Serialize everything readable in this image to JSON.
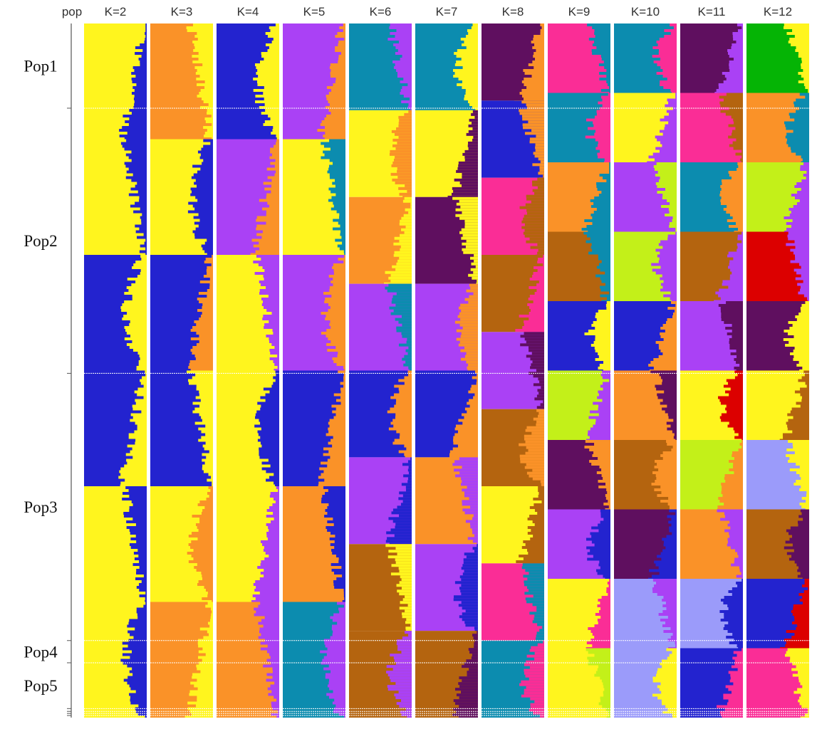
{
  "chart_data": {
    "type": "structure-admixture-barplot",
    "population_header": "pop",
    "k_values": [
      "K=2",
      "K=3",
      "K=4",
      "K=5",
      "K=6",
      "K=7",
      "K=8",
      "K=9",
      "K=10",
      "K=11",
      "K=12"
    ],
    "populations": [
      {
        "name": "Pop1",
        "share": 0.122
      },
      {
        "name": "Pop2",
        "share": 0.382
      },
      {
        "name": "Pop3",
        "share": 0.385
      },
      {
        "name": "Pop4",
        "share": 0.032
      },
      {
        "name": "Pop5",
        "share": 0.066
      },
      {
        "name": "",
        "share": 0.004
      },
      {
        "name": "",
        "share": 0.003
      },
      {
        "name": "",
        "share": 0.003
      },
      {
        "name": "",
        "share": 0.003
      }
    ],
    "cluster_colors": {
      "yellow": "#FFF51E",
      "blue": "#2323CF",
      "orange": "#FA9228",
      "purple": "#AA41F5",
      "teal": "#0C8CAF",
      "dark_purple": "#5F0F5F",
      "pink": "#FA2D96",
      "brown": "#B4640F",
      "lime": "#C3F019",
      "lavender": "#9B9BFA",
      "green": "#05B405",
      "red": "#DC0000"
    },
    "panels": [
      {
        "k": "K=2",
        "blocks": [
          [
            "yellow",
            "blue"
          ],
          [
            "yellow",
            "blue"
          ],
          [
            "blue",
            "yellow"
          ],
          [
            "blue",
            "yellow"
          ],
          [
            "yellow",
            "blue"
          ],
          [
            "yellow",
            "blue"
          ]
        ]
      },
      {
        "k": "K=3",
        "blocks": [
          [
            "orange",
            "yellow"
          ],
          [
            "yellow",
            "blue"
          ],
          [
            "blue",
            "orange"
          ],
          [
            "blue",
            "yellow"
          ],
          [
            "yellow",
            "orange"
          ],
          [
            "orange",
            "yellow"
          ]
        ]
      },
      {
        "k": "K=4",
        "blocks": [
          [
            "blue",
            "yellow"
          ],
          [
            "purple",
            "orange"
          ],
          [
            "yellow",
            "purple"
          ],
          [
            "yellow",
            "blue"
          ],
          [
            "yellow",
            "purple"
          ],
          [
            "orange",
            "purple"
          ]
        ]
      },
      {
        "k": "K=5",
        "blocks": [
          [
            "purple",
            "orange"
          ],
          [
            "yellow",
            "teal"
          ],
          [
            "purple",
            "orange"
          ],
          [
            "blue",
            "orange"
          ],
          [
            "orange",
            "blue"
          ],
          [
            "teal",
            "purple"
          ]
        ]
      },
      {
        "k": "K=6",
        "blocks": [
          [
            "teal",
            "purple"
          ],
          [
            "yellow",
            "orange"
          ],
          [
            "orange",
            "yellow"
          ],
          [
            "purple",
            "teal"
          ],
          [
            "blue",
            "orange"
          ],
          [
            "purple",
            "blue"
          ],
          [
            "brown",
            "yellow"
          ],
          [
            "brown",
            "purple"
          ]
        ]
      },
      {
        "k": "K=7",
        "blocks": [
          [
            "teal",
            "yellow"
          ],
          [
            "yellow",
            "dark_purple"
          ],
          [
            "dark_purple",
            "yellow"
          ],
          [
            "purple",
            "orange"
          ],
          [
            "blue",
            "orange"
          ],
          [
            "orange",
            "purple"
          ],
          [
            "purple",
            "blue"
          ],
          [
            "brown",
            "dark_purple"
          ]
        ]
      },
      {
        "k": "K=8",
        "blocks": [
          [
            "dark_purple",
            "orange"
          ],
          [
            "blue",
            "orange"
          ],
          [
            "pink",
            "brown"
          ],
          [
            "brown",
            "pink"
          ],
          [
            "purple",
            "dark_purple"
          ],
          [
            "brown",
            "orange"
          ],
          [
            "yellow",
            "brown"
          ],
          [
            "pink",
            "teal"
          ],
          [
            "teal",
            "pink"
          ]
        ]
      },
      {
        "k": "K=9",
        "blocks": [
          [
            "pink",
            "teal"
          ],
          [
            "teal",
            "pink"
          ],
          [
            "orange",
            "teal"
          ],
          [
            "brown",
            "teal"
          ],
          [
            "blue",
            "yellow"
          ],
          [
            "lime",
            "purple"
          ],
          [
            "dark_purple",
            "orange"
          ],
          [
            "purple",
            "blue"
          ],
          [
            "yellow",
            "pink"
          ],
          [
            "yellow",
            "lime"
          ]
        ]
      },
      {
        "k": "K=10",
        "blocks": [
          [
            "teal",
            "pink"
          ],
          [
            "yellow",
            "purple"
          ],
          [
            "purple",
            "lime"
          ],
          [
            "lime",
            "purple"
          ],
          [
            "blue",
            "orange"
          ],
          [
            "orange",
            "dark_purple"
          ],
          [
            "brown",
            "orange"
          ],
          [
            "dark_purple",
            "blue"
          ],
          [
            "lavender",
            "purple"
          ],
          [
            "lavender",
            "yellow"
          ]
        ]
      },
      {
        "k": "K=11",
        "blocks": [
          [
            "dark_purple",
            "purple"
          ],
          [
            "pink",
            "brown"
          ],
          [
            "teal",
            "orange"
          ],
          [
            "brown",
            "purple"
          ],
          [
            "purple",
            "dark_purple"
          ],
          [
            "yellow",
            "red"
          ],
          [
            "lime",
            "orange"
          ],
          [
            "orange",
            "purple"
          ],
          [
            "lavender",
            "blue"
          ],
          [
            "blue",
            "pink"
          ]
        ]
      },
      {
        "k": "K=12",
        "blocks": [
          [
            "green",
            "yellow"
          ],
          [
            "orange",
            "teal"
          ],
          [
            "lime",
            "purple"
          ],
          [
            "red",
            "purple"
          ],
          [
            "dark_purple",
            "yellow"
          ],
          [
            "yellow",
            "brown"
          ],
          [
            "lavender",
            "yellow"
          ],
          [
            "brown",
            "dark_purple"
          ],
          [
            "blue",
            "red"
          ],
          [
            "pink",
            "yellow"
          ]
        ]
      }
    ]
  }
}
